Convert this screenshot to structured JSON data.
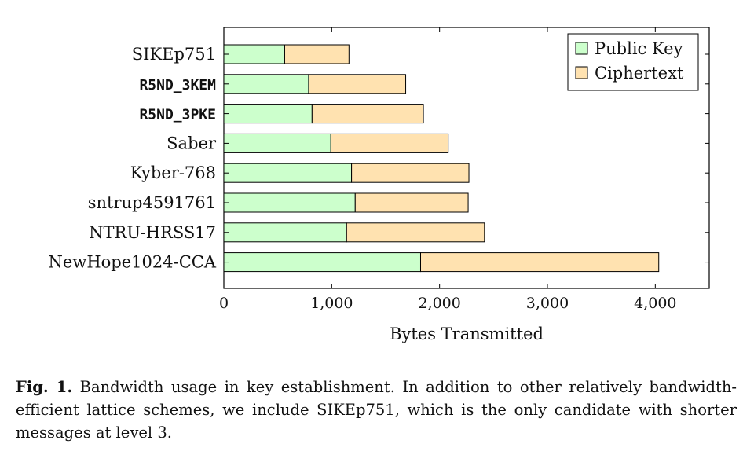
{
  "chart_data": {
    "type": "bar",
    "orientation": "horizontal",
    "stacked": true,
    "categories": [
      "SIKEp751",
      "R5ND_3KEM",
      "R5ND_3PKE",
      "Saber",
      "Kyber-768",
      "sntrup4591761",
      "NTRU-HRSS17",
      "NewHope1024-CCA"
    ],
    "series": [
      {
        "name": "Public Key",
        "color": "#ccffcc",
        "values": [
          564,
          786,
          818,
          992,
          1184,
          1218,
          1138,
          1824
        ]
      },
      {
        "name": "Ciphertext",
        "color": "#ffe2b0",
        "values": [
          596,
          900,
          1032,
          1088,
          1088,
          1047,
          1278,
          2208
        ]
      }
    ],
    "xlim": [
      0,
      4500
    ],
    "xticks": [
      0,
      1000,
      2000,
      3000,
      4000
    ],
    "xtick_labels": [
      "0",
      "1,000",
      "2,000",
      "3,000",
      "4,000"
    ],
    "xlabel": "Bytes Transmitted",
    "ylabel": "",
    "legend_position": "top-right",
    "grid": false
  },
  "caption": {
    "label": "Fig. 1.",
    "text": "Bandwidth usage in key establishment. In addition to other relatively bandwidth-efficient lattice schemes, we include SIKEp751, which is the only candidate with shorter messages at level 3."
  }
}
